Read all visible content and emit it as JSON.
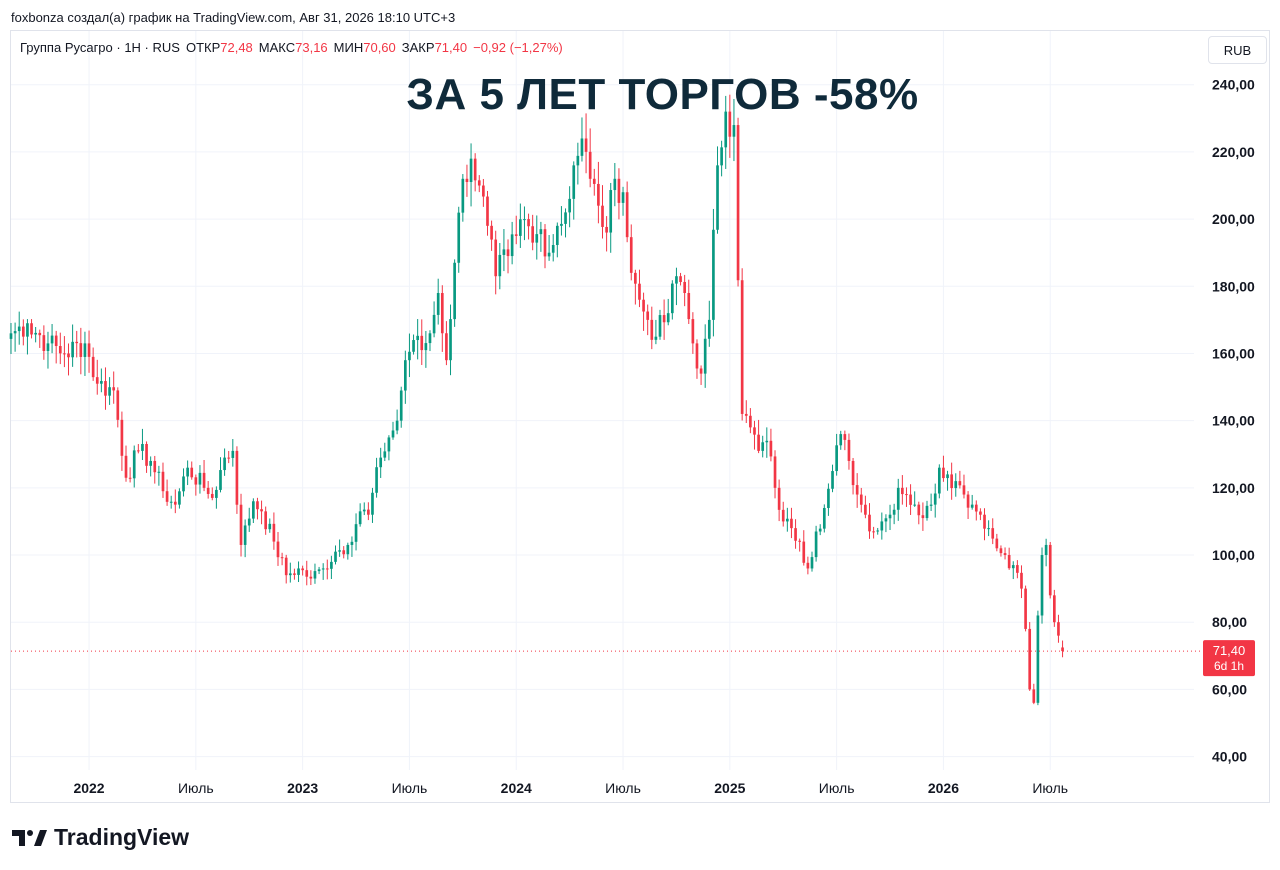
{
  "caption": "foxbonza создал(а) график на TradingView.com, Авг 31, 2026 18:10 UTC+3",
  "legend": {
    "symbol": "Группа Русагро · 1Н · RUS",
    "open_label": "ОТКР",
    "open_value": "72,48",
    "high_label": "МАКС",
    "high_value": "73,16",
    "low_label": "МИН",
    "low_value": "70,60",
    "close_label": "ЗАКР",
    "close_value": "71,40",
    "change": "−0,92 (−1,27%)"
  },
  "currency_button": "RUB",
  "headline": "ЗА 5 ЛЕТ ТОРГОВ -58%",
  "price_tag": {
    "price": "71,40",
    "countdown": "6d 1h"
  },
  "logo_text": "TradingView",
  "colors": {
    "up": "#089981",
    "down": "#f23645",
    "grid": "#f0f3fa",
    "text": "#131722",
    "headline": "#0f2a3a"
  },
  "chart_data": {
    "type": "candlestick",
    "interval": "1W",
    "y_axis_labels": [
      "240,00",
      "220,00",
      "200,00",
      "180,00",
      "160,00",
      "140,00",
      "120,00",
      "100,00",
      "80,00",
      "60,00",
      "40,00"
    ],
    "y_axis_values": [
      240,
      220,
      200,
      180,
      160,
      140,
      120,
      100,
      80,
      60,
      40
    ],
    "ylim": [
      36,
      256
    ],
    "x_tick_labels": [
      "2022",
      "Июль",
      "2023",
      "Июль",
      "2024",
      "Июль",
      "2025",
      "Июль",
      "2026",
      "Июль"
    ],
    "x_tick_bold": [
      true,
      false,
      true,
      false,
      true,
      false,
      true,
      false,
      true,
      false
    ],
    "x_tick_weeks": [
      0,
      26,
      52,
      78,
      104,
      130,
      156,
      182,
      208,
      234
    ],
    "x_range_weeks": [
      -19,
      269
    ],
    "last_price": 71.4,
    "anchors": [
      [
        -19,
        166
      ],
      [
        -15,
        169
      ],
      [
        -10,
        163
      ],
      [
        -6,
        160
      ],
      [
        -1,
        163
      ],
      [
        2,
        151
      ],
      [
        6,
        149
      ],
      [
        9,
        123
      ],
      [
        12,
        131
      ],
      [
        15,
        128
      ],
      [
        18,
        119
      ],
      [
        21,
        115
      ],
      [
        24,
        126
      ],
      [
        28,
        120
      ],
      [
        30,
        117
      ],
      [
        33,
        129
      ],
      [
        35,
        131
      ],
      [
        37,
        103
      ],
      [
        40,
        116
      ],
      [
        42,
        113
      ],
      [
        45,
        104
      ],
      [
        48,
        94
      ],
      [
        51,
        96
      ],
      [
        54,
        93
      ],
      [
        57,
        96
      ],
      [
        60,
        101
      ],
      [
        63,
        103
      ],
      [
        66,
        113
      ],
      [
        68,
        112
      ],
      [
        71,
        129
      ],
      [
        73,
        135
      ],
      [
        75,
        140
      ],
      [
        77,
        158
      ],
      [
        79,
        164
      ],
      [
        81,
        161
      ],
      [
        83,
        166
      ],
      [
        85,
        178
      ],
      [
        87,
        158
      ],
      [
        89,
        187
      ],
      [
        91,
        212
      ],
      [
        93,
        218
      ],
      [
        95,
        210
      ],
      [
        97,
        198
      ],
      [
        99,
        183
      ],
      [
        102,
        189
      ],
      [
        104,
        195
      ],
      [
        106,
        200
      ],
      [
        108,
        193
      ],
      [
        110,
        197
      ],
      [
        112,
        190
      ],
      [
        114,
        198
      ],
      [
        116,
        202
      ],
      [
        118,
        216
      ],
      [
        120,
        224
      ],
      [
        122,
        212
      ],
      [
        124,
        204
      ],
      [
        126,
        196
      ],
      [
        128,
        212
      ],
      [
        130,
        208
      ],
      [
        132,
        184
      ],
      [
        134,
        176
      ],
      [
        136,
        170
      ],
      [
        138,
        165
      ],
      [
        141,
        172
      ],
      [
        143,
        183
      ],
      [
        145,
        178
      ],
      [
        147,
        163
      ],
      [
        149,
        154
      ],
      [
        151,
        170
      ],
      [
        153,
        216
      ],
      [
        155,
        232
      ],
      [
        157,
        228
      ],
      [
        159,
        142
      ],
      [
        161,
        138
      ],
      [
        163,
        131
      ],
      [
        165,
        134
      ],
      [
        167,
        120
      ],
      [
        169,
        110
      ],
      [
        171,
        108
      ],
      [
        173,
        104
      ],
      [
        175,
        96
      ],
      [
        177,
        107
      ],
      [
        179,
        114
      ],
      [
        181,
        125
      ],
      [
        183,
        136
      ],
      [
        185,
        128
      ],
      [
        187,
        118
      ],
      [
        189,
        112
      ],
      [
        191,
        107
      ],
      [
        193,
        110
      ],
      [
        195,
        112
      ],
      [
        197,
        120
      ],
      [
        199,
        118
      ],
      [
        201,
        115
      ],
      [
        203,
        111
      ],
      [
        205,
        115
      ],
      [
        207,
        126
      ],
      [
        209,
        124
      ],
      [
        211,
        122
      ],
      [
        213,
        118
      ],
      [
        215,
        115
      ],
      [
        217,
        112
      ],
      [
        219,
        108
      ],
      [
        221,
        102
      ],
      [
        223,
        100
      ],
      [
        225,
        97
      ],
      [
        227,
        90
      ],
      [
        228,
        78
      ],
      [
        229,
        60
      ],
      [
        230,
        56
      ],
      [
        231,
        82
      ],
      [
        232,
        100
      ],
      [
        233,
        103
      ],
      [
        234,
        88
      ],
      [
        235,
        80
      ],
      [
        236,
        76
      ],
      [
        237,
        72.48
      ]
    ]
  }
}
